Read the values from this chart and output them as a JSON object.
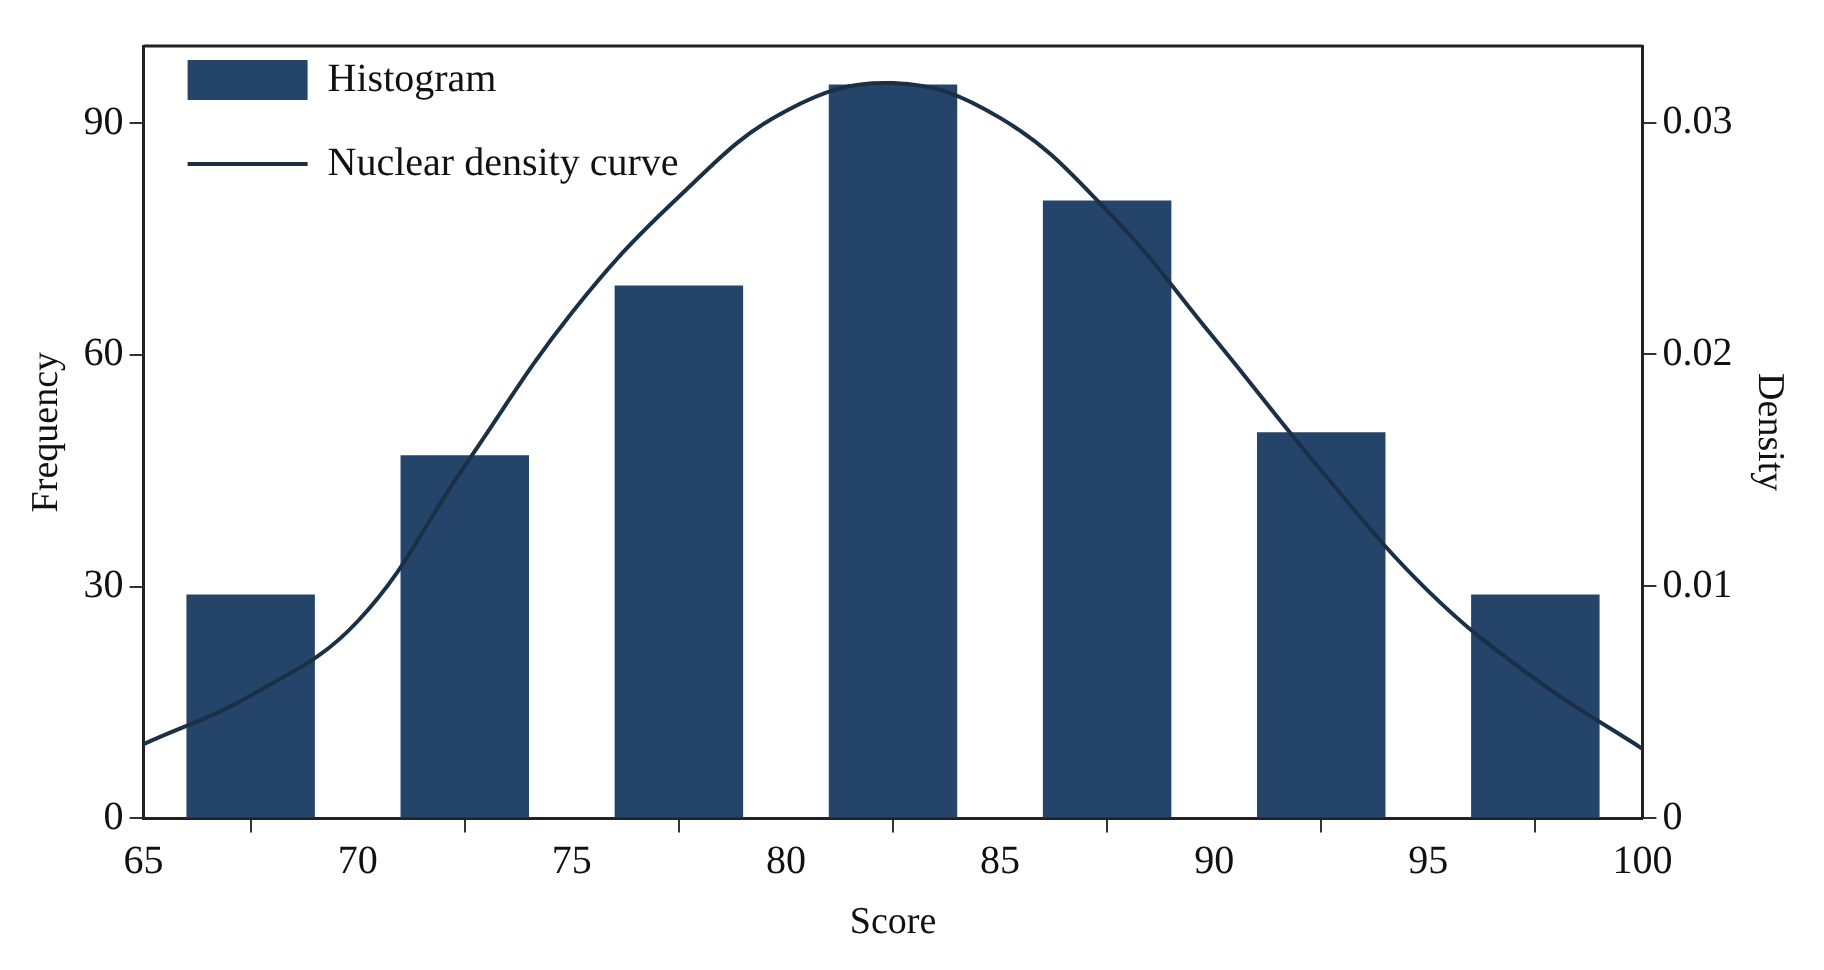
{
  "chart_data": {
    "type": "bar",
    "xlabel": "Score",
    "ylabel": "Frequency",
    "y2label": "Density",
    "xlim": [
      65,
      100
    ],
    "xticks": [
      65,
      70,
      75,
      80,
      85,
      90,
      95,
      100
    ],
    "ylim": [
      0,
      100
    ],
    "yticks": [
      0,
      30,
      60,
      90
    ],
    "y2lim": [
      0,
      0.0333
    ],
    "y2ticks": [
      0,
      0.01,
      0.02,
      0.03
    ],
    "legend": "top left",
    "series": [
      {
        "name": "Histogram",
        "color": "#24446a",
        "x": [
          67.5,
          72.5,
          77.5,
          82.5,
          87.5,
          92.5,
          97.5
        ],
        "values": [
          29,
          47,
          69,
          95,
          80,
          50,
          29
        ]
      },
      {
        "name": "Nuclear density curve",
        "type": "line",
        "axis": "y2",
        "color": "#1b2f45",
        "x": [
          65,
          67.5,
          70,
          72.5,
          75,
          77.5,
          80,
          82.5,
          85,
          87.5,
          90,
          92.5,
          95,
          97.5,
          100
        ],
        "values": [
          0.0032,
          0.0053,
          0.0085,
          0.0152,
          0.0218,
          0.0268,
          0.0305,
          0.0317,
          0.0302,
          0.0262,
          0.0207,
          0.015,
          0.0098,
          0.006,
          0.003
        ]
      }
    ]
  }
}
